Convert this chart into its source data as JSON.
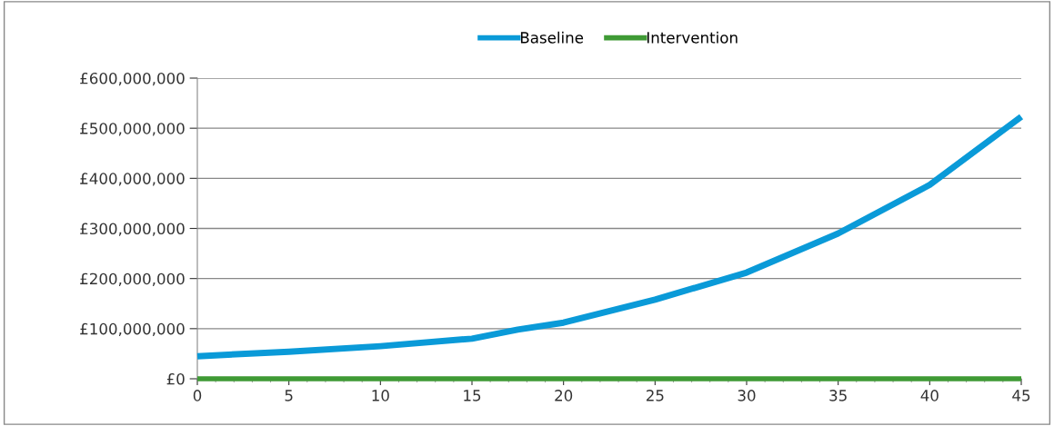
{
  "chart_data": {
    "type": "line",
    "series": [
      {
        "name": "Baseline",
        "color": "#0a9ad8",
        "x": [
          0,
          5,
          10,
          15,
          17.5,
          20,
          25,
          30,
          35,
          40,
          45
        ],
        "values": [
          45000000,
          54000000,
          65000000,
          80000000,
          98000000,
          112000000,
          158000000,
          212000000,
          290000000,
          387000000,
          523000000
        ]
      },
      {
        "name": "Intervention",
        "color": "#3f9a35",
        "x": [
          0,
          45
        ],
        "values": [
          0,
          0
        ]
      }
    ],
    "xlim": [
      0,
      45
    ],
    "xticks": [
      0,
      5,
      10,
      15,
      20,
      25,
      30,
      35,
      40,
      45
    ],
    "ylim": [
      0,
      600000000
    ],
    "yticks": [
      {
        "value": 0,
        "label": "£0"
      },
      {
        "value": 100000000,
        "label": "£100,000,000"
      },
      {
        "value": 200000000,
        "label": "£200,000,000"
      },
      {
        "value": 300000000,
        "label": "£300,000,000"
      },
      {
        "value": 400000000,
        "label": "£400,000,000"
      },
      {
        "value": 500000000,
        "label": "£500,000,000"
      },
      {
        "value": 600000000,
        "label": "£600,000,000"
      }
    ],
    "grid": "y",
    "legend": "top",
    "line_style": "solid",
    "marker": "none"
  }
}
